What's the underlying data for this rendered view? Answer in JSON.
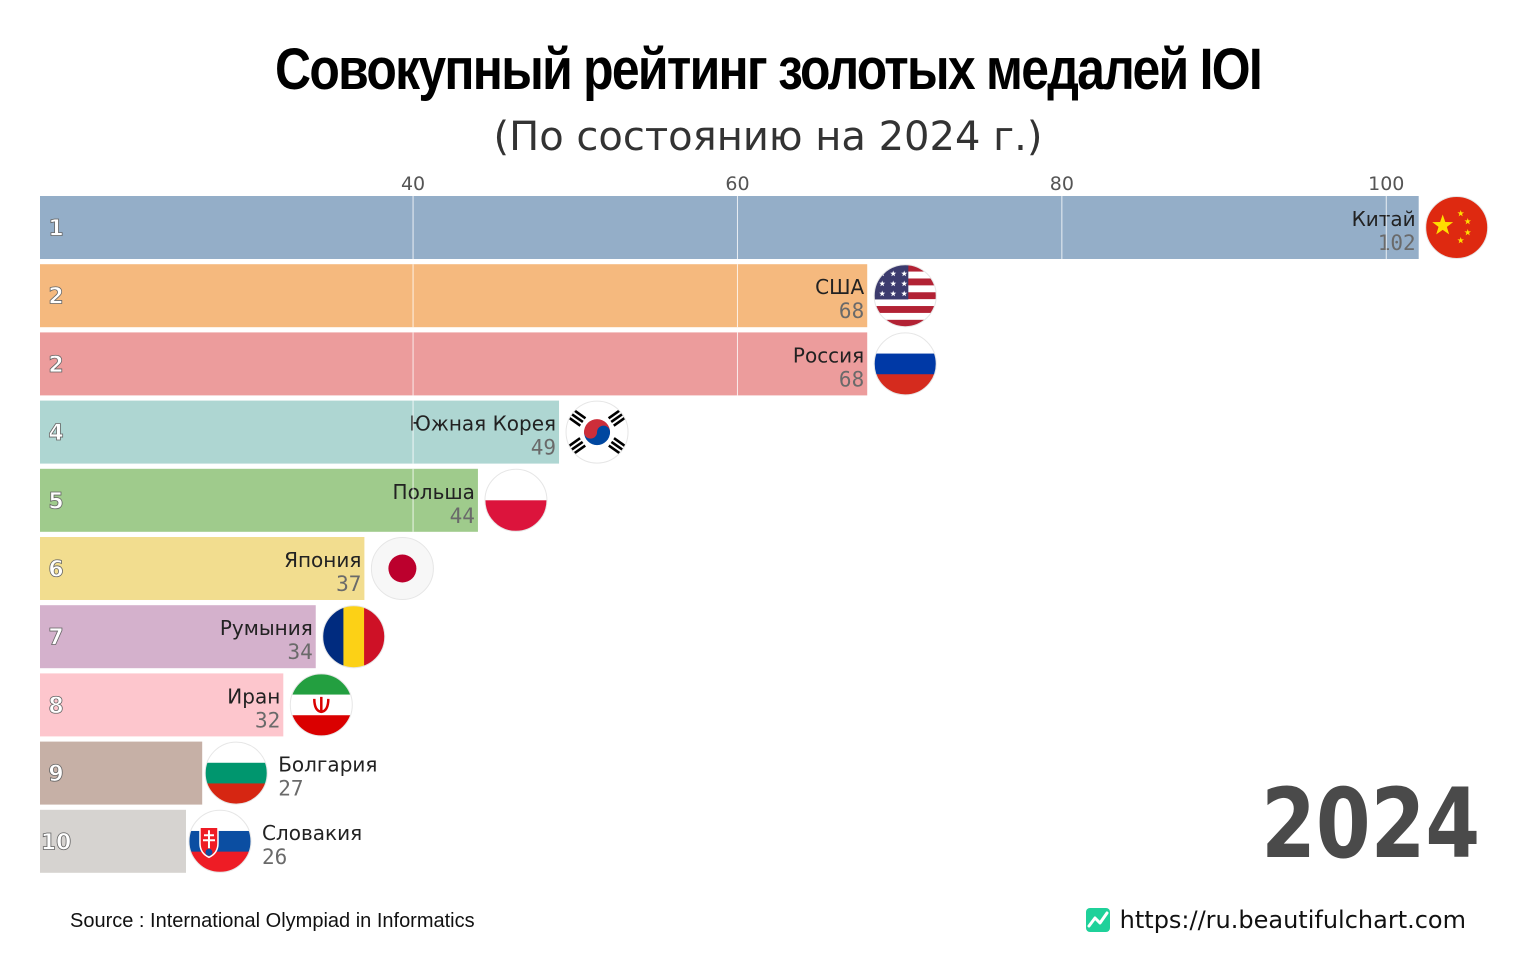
{
  "title": "Совокупный рейтинг золотых медалей IOI",
  "subtitle": "(По состоянию на 2024 г.)",
  "year": "2024",
  "source": "Source : International Olympiad in Informatics",
  "site": "https://ru.beautifulchart.com",
  "site_icon": "line-chart-icon",
  "chart_data": {
    "type": "bar",
    "orientation": "horizontal",
    "x_ticks": [
      40,
      60,
      80,
      100
    ],
    "xlim": [
      17,
      104
    ],
    "grid": true,
    "rows": [
      {
        "rank": "1",
        "country": "Китай",
        "value": 102,
        "color": "#94aec8",
        "flag": "china-flag-icon"
      },
      {
        "rank": "2",
        "country": "США",
        "value": 68,
        "color": "#f5b97e",
        "flag": "usa-flag-icon"
      },
      {
        "rank": "2",
        "country": "Россия",
        "value": 68,
        "color": "#ec9c9c",
        "flag": "russia-flag-icon"
      },
      {
        "rank": "4",
        "country": "Южная Корея",
        "value": 49,
        "color": "#aed6d2",
        "flag": "south-korea-flag-icon"
      },
      {
        "rank": "5",
        "country": "Польша",
        "value": 44,
        "color": "#9fcb8c",
        "flag": "poland-flag-icon"
      },
      {
        "rank": "6",
        "country": "Япония",
        "value": 37,
        "color": "#f2dd8f",
        "flag": "japan-flag-icon"
      },
      {
        "rank": "7",
        "country": "Румыния",
        "value": 34,
        "color": "#d4b1cc",
        "flag": "romania-flag-icon"
      },
      {
        "rank": "8",
        "country": "Иран",
        "value": 32,
        "color": "#fdc6cd",
        "flag": "iran-flag-icon"
      },
      {
        "rank": "9",
        "country": "Болгария",
        "value": 27,
        "color": "#c6b0a6",
        "flag": "bulgaria-flag-icon"
      },
      {
        "rank": "10",
        "country": "Словакия",
        "value": 26,
        "color": "#d6d3d0",
        "flag": "slovakia-flag-icon"
      }
    ]
  }
}
